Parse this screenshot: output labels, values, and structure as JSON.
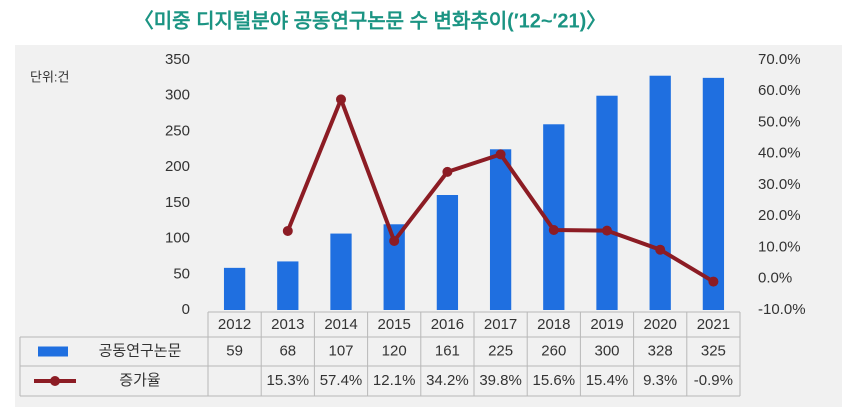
{
  "chart_data": {
    "type": "combo",
    "title": "〈미중 디지털분야 공동연구논문 수 변화추이(′12~′21)〉",
    "unit_label": "단위:건",
    "categories": [
      "2012",
      "2013",
      "2014",
      "2015",
      "2016",
      "2017",
      "2018",
      "2019",
      "2020",
      "2021"
    ],
    "series": [
      {
        "name": "공동연구논문",
        "type": "bar",
        "color": "#1f6fe0",
        "values": [
          59,
          68,
          107,
          120,
          161,
          225,
          260,
          300,
          328,
          325
        ]
      },
      {
        "name": "증가율",
        "type": "line",
        "axis": "y2",
        "color": "#8c1c24",
        "values": [
          null,
          15.3,
          57.4,
          12.1,
          34.2,
          39.8,
          15.6,
          15.4,
          9.3,
          -0.9
        ],
        "value_labels": [
          null,
          "15.3%",
          "57.4%",
          "12.1%",
          "34.2%",
          "39.8%",
          "15.6%",
          "15.4%",
          "9.3%",
          "-0.9%"
        ]
      }
    ],
    "ylim": [
      0,
      350
    ],
    "yticks": [
      0,
      50,
      100,
      150,
      200,
      250,
      300,
      350
    ],
    "y2lim": [
      -10,
      70
    ],
    "y2ticks": [
      {
        "value": -10,
        "label": "-10.0%"
      },
      {
        "value": 0,
        "label": "0.0%"
      },
      {
        "value": 10,
        "label": "10.0%"
      },
      {
        "value": 20,
        "label": "20.0%"
      },
      {
        "value": 30,
        "label": "30.0%"
      },
      {
        "value": 40,
        "label": "40.0%"
      },
      {
        "value": 50,
        "label": "50.0%"
      },
      {
        "value": 60,
        "label": "60.0%"
      },
      {
        "value": 70,
        "label": "70.0%"
      }
    ],
    "grid": false
  }
}
